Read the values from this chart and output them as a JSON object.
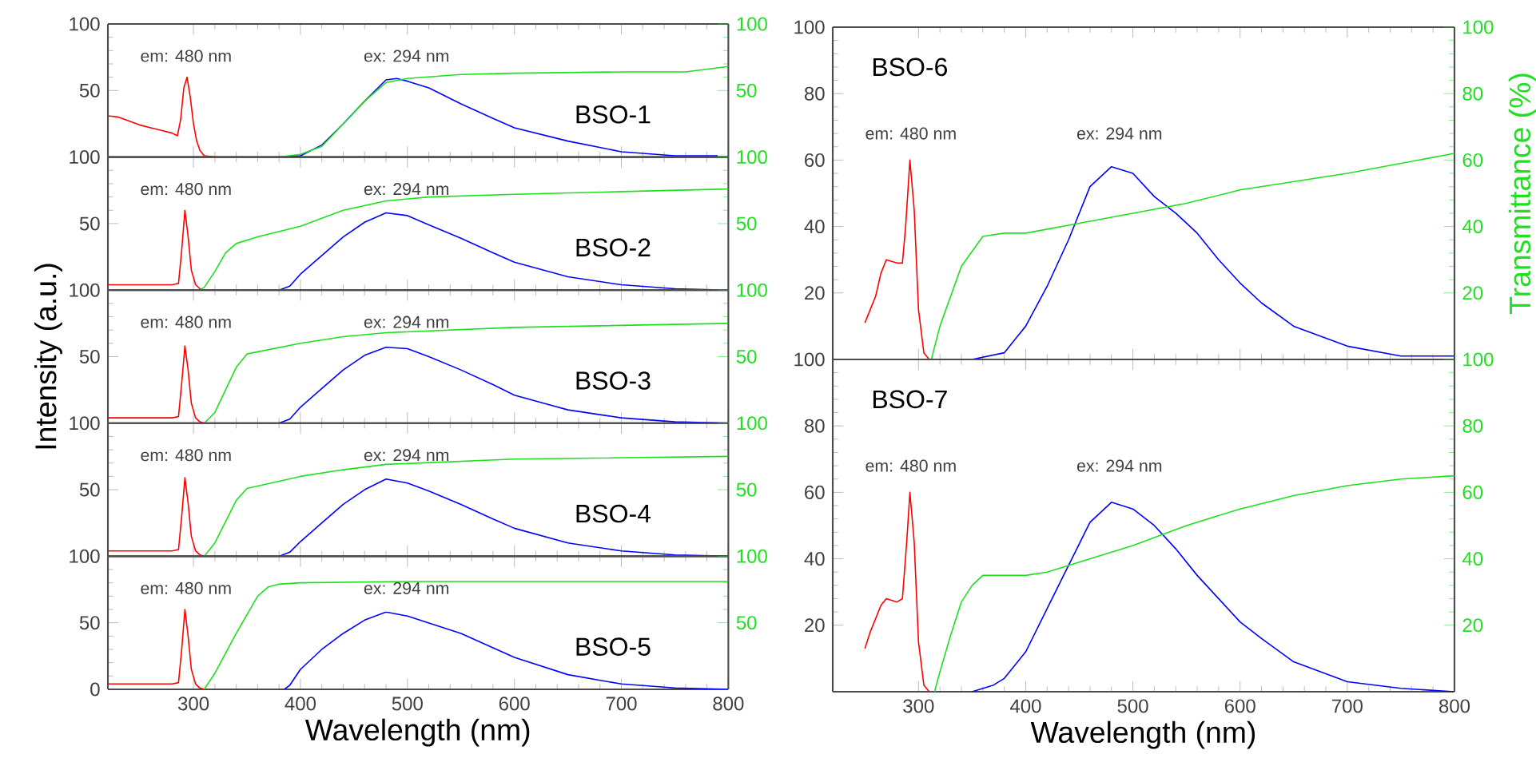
{
  "chart_data": [
    {
      "type": "line",
      "title": "BSO-1",
      "annotations": [
        "em: 480 nm",
        "ex: 294 nm"
      ],
      "xlim": [
        220,
        800
      ],
      "xticks": [
        300,
        400,
        500,
        600,
        700,
        800
      ],
      "ylim": [
        0,
        100
      ],
      "yticks": [
        50,
        100
      ],
      "y2lim": [
        0,
        100
      ],
      "y2ticks": [
        50,
        100
      ],
      "tick_labels": "y",
      "series": [
        {
          "color": "#ff0000",
          "x": [
            220,
            230,
            240,
            250,
            260,
            270,
            280,
            285,
            288,
            291,
            294,
            297,
            300,
            303,
            306,
            310,
            320
          ],
          "values": [
            31,
            30,
            27,
            24,
            22,
            20,
            18,
            16,
            28,
            52,
            60,
            45,
            25,
            12,
            5,
            1,
            0
          ]
        },
        {
          "color": "#0000ff",
          "x": [
            380,
            400,
            420,
            440,
            460,
            480,
            490,
            500,
            520,
            550,
            580,
            600,
            650,
            700,
            750,
            790
          ],
          "values": [
            0,
            1,
            9,
            25,
            42,
            58,
            59,
            57,
            52,
            40,
            29,
            22,
            12,
            4,
            1,
            1
          ]
        },
        {
          "color": "#1ee01e",
          "axis": "y2",
          "x": [
            380,
            400,
            420,
            440,
            460,
            480,
            500,
            550,
            600,
            700,
            760,
            800
          ],
          "values": [
            0,
            2,
            8,
            25,
            42,
            56,
            59,
            62,
            63,
            64,
            64,
            68
          ]
        }
      ]
    },
    {
      "type": "line",
      "title": "BSO-2",
      "annotations": [
        "em: 480 nm",
        "ex: 294 nm"
      ],
      "xlim": [
        220,
        800
      ],
      "xticks": [
        300,
        400,
        500,
        600,
        700,
        800
      ],
      "ylim": [
        0,
        100
      ],
      "yticks": [
        50,
        100
      ],
      "y2lim": [
        0,
        100
      ],
      "y2ticks": [
        50,
        100
      ],
      "tick_labels": "y",
      "series": [
        {
          "color": "#ff0000",
          "x": [
            220,
            240,
            260,
            280,
            286,
            289,
            292,
            295,
            298,
            302,
            306,
            310
          ],
          "values": [
            4,
            4,
            4,
            4,
            5,
            30,
            60,
            40,
            15,
            4,
            1,
            0
          ]
        },
        {
          "color": "#0000ff",
          "x": [
            380,
            390,
            400,
            420,
            440,
            460,
            480,
            500,
            520,
            550,
            580,
            600,
            650,
            700,
            750,
            800
          ],
          "values": [
            0,
            3,
            12,
            26,
            40,
            51,
            58,
            56,
            49,
            39,
            28,
            21,
            10,
            4,
            1,
            0
          ]
        },
        {
          "color": "#1ee01e",
          "axis": "y2",
          "x": [
            305,
            310,
            320,
            330,
            340,
            360,
            400,
            440,
            480,
            520,
            600,
            700,
            800
          ],
          "values": [
            0,
            2,
            14,
            28,
            35,
            40,
            48,
            60,
            67,
            70,
            72,
            74,
            76
          ]
        }
      ]
    },
    {
      "type": "line",
      "title": "BSO-3",
      "ylabel": "Intensity (a.u.)",
      "annotations": [
        "em: 480 nm",
        "ex: 294 nm"
      ],
      "xlim": [
        220,
        800
      ],
      "xticks": [
        300,
        400,
        500,
        600,
        700,
        800
      ],
      "ylim": [
        0,
        100
      ],
      "yticks": [
        50,
        100
      ],
      "y2lim": [
        0,
        100
      ],
      "y2ticks": [
        50,
        100
      ],
      "tick_labels": "y",
      "series": [
        {
          "color": "#ff0000",
          "x": [
            220,
            240,
            260,
            280,
            286,
            289,
            292,
            295,
            298,
            302,
            306,
            310
          ],
          "values": [
            4,
            4,
            4,
            4,
            5,
            30,
            58,
            40,
            15,
            4,
            1,
            0
          ]
        },
        {
          "color": "#0000ff",
          "x": [
            380,
            390,
            400,
            420,
            440,
            460,
            480,
            500,
            520,
            550,
            580,
            600,
            650,
            700,
            750,
            800
          ],
          "values": [
            0,
            3,
            12,
            26,
            40,
            51,
            57,
            56,
            50,
            40,
            29,
            21,
            10,
            4,
            1,
            0
          ]
        },
        {
          "color": "#1ee01e",
          "axis": "y2",
          "x": [
            310,
            320,
            330,
            340,
            350,
            400,
            440,
            480,
            600,
            800
          ],
          "values": [
            0,
            8,
            25,
            42,
            52,
            60,
            65,
            68,
            72,
            75
          ]
        }
      ]
    },
    {
      "type": "line",
      "title": "BSO-4",
      "annotations": [
        "em: 480 nm",
        "ex: 294 nm"
      ],
      "xlim": [
        220,
        800
      ],
      "xticks": [
        300,
        400,
        500,
        600,
        700,
        800
      ],
      "ylim": [
        0,
        100
      ],
      "yticks": [
        50,
        100
      ],
      "y2lim": [
        0,
        100
      ],
      "y2ticks": [
        50,
        100
      ],
      "tick_labels": "y",
      "series": [
        {
          "color": "#ff0000",
          "x": [
            220,
            240,
            260,
            280,
            286,
            289,
            292,
            295,
            298,
            302,
            306,
            310
          ],
          "values": [
            4,
            4,
            4,
            4,
            5,
            30,
            59,
            40,
            15,
            4,
            1,
            0
          ]
        },
        {
          "color": "#0000ff",
          "x": [
            380,
            390,
            400,
            420,
            440,
            460,
            480,
            500,
            520,
            550,
            580,
            600,
            650,
            700,
            750,
            800
          ],
          "values": [
            0,
            3,
            11,
            25,
            39,
            50,
            58,
            55,
            49,
            39,
            28,
            21,
            10,
            4,
            1,
            0
          ]
        },
        {
          "color": "#1ee01e",
          "axis": "y2",
          "x": [
            310,
            320,
            330,
            340,
            350,
            400,
            440,
            480,
            600,
            800
          ],
          "values": [
            0,
            10,
            26,
            42,
            51,
            60,
            65,
            69,
            73,
            75
          ]
        }
      ]
    },
    {
      "type": "line",
      "title": "BSO-5",
      "xlabel": "Wavelength (nm)",
      "annotations": [
        "em: 480 nm",
        "ex: 294 nm"
      ],
      "xlim": [
        220,
        800
      ],
      "xticks": [
        300,
        400,
        500,
        600,
        700,
        800
      ],
      "ylim": [
        0,
        100
      ],
      "yticks": [
        0,
        50,
        100
      ],
      "y2lim": [
        0,
        100
      ],
      "y2ticks": [
        50,
        100
      ],
      "series": [
        {
          "color": "#ff0000",
          "x": [
            220,
            240,
            260,
            280,
            286,
            289,
            292,
            295,
            298,
            302,
            306,
            310
          ],
          "values": [
            4,
            4,
            4,
            4,
            5,
            30,
            60,
            40,
            15,
            4,
            1,
            0
          ]
        },
        {
          "color": "#0000ff",
          "x": [
            385,
            390,
            400,
            420,
            440,
            460,
            480,
            500,
            550,
            600,
            650,
            700,
            750,
            800
          ],
          "values": [
            0,
            3,
            15,
            30,
            42,
            52,
            58,
            55,
            42,
            24,
            11,
            4,
            1,
            0
          ]
        },
        {
          "color": "#1ee01e",
          "axis": "y2",
          "x": [
            310,
            320,
            340,
            350,
            360,
            370,
            380,
            400,
            500,
            800
          ],
          "values": [
            0,
            12,
            42,
            56,
            70,
            77,
            79,
            80,
            81,
            81
          ]
        }
      ]
    },
    {
      "type": "line",
      "title": "BSO-6",
      "y2label": "Transmittance (%)",
      "annotations": [
        "em: 480 nm",
        "ex: 294 nm"
      ],
      "xlim": [
        220,
        800
      ],
      "xticks": [
        300,
        400,
        500,
        600,
        700,
        800
      ],
      "ylim": [
        0,
        100
      ],
      "yticks": [
        20,
        40,
        60,
        80,
        100
      ],
      "y2lim": [
        0,
        100
      ],
      "y2ticks": [
        20,
        40,
        60,
        80,
        100
      ],
      "tick_labels": "y",
      "series": [
        {
          "color": "#ff0000",
          "x": [
            250,
            255,
            260,
            265,
            270,
            280,
            285,
            288,
            292,
            296,
            300,
            305,
            310,
            350
          ],
          "values": [
            11,
            15,
            19,
            26,
            30,
            29,
            29,
            40,
            60,
            45,
            15,
            2,
            0,
            0
          ]
        },
        {
          "color": "#0000ff",
          "x": [
            350,
            380,
            400,
            420,
            440,
            460,
            480,
            500,
            520,
            540,
            560,
            580,
            600,
            620,
            650,
            700,
            750,
            800
          ],
          "values": [
            0,
            2,
            10,
            22,
            36,
            52,
            58,
            56,
            49,
            44,
            38,
            30,
            23,
            17,
            10,
            4,
            1,
            1
          ]
        },
        {
          "color": "#1ee01e",
          "axis": "y2",
          "x": [
            312,
            320,
            340,
            360,
            380,
            400,
            450,
            500,
            550,
            600,
            700,
            800
          ],
          "values": [
            0,
            10,
            28,
            37,
            38,
            38,
            41,
            44,
            47,
            51,
            56,
            62
          ]
        }
      ]
    },
    {
      "type": "line",
      "title": "BSO-7",
      "xlabel": "Wavelength (nm)",
      "annotations": [
        "em: 480 nm",
        "ex: 294 nm"
      ],
      "xlim": [
        220,
        800
      ],
      "xticks": [
        300,
        400,
        500,
        600,
        700,
        800
      ],
      "ylim": [
        0,
        100
      ],
      "yticks": [
        20,
        40,
        60,
        80,
        100
      ],
      "y2lim": [
        0,
        100
      ],
      "y2ticks": [
        20,
        40,
        60,
        80,
        100
      ],
      "series": [
        {
          "color": "#ff0000",
          "x": [
            250,
            255,
            260,
            265,
            270,
            280,
            285,
            289,
            292,
            296,
            300,
            305,
            310,
            350
          ],
          "values": [
            13,
            18,
            22,
            26,
            28,
            27,
            28,
            45,
            60,
            45,
            15,
            2,
            0,
            0
          ]
        },
        {
          "color": "#0000ff",
          "x": [
            350,
            370,
            380,
            400,
            420,
            440,
            460,
            480,
            500,
            520,
            540,
            560,
            580,
            600,
            620,
            650,
            700,
            750,
            800
          ],
          "values": [
            0,
            2,
            4,
            12,
            25,
            38,
            51,
            57,
            55,
            50,
            43,
            35,
            28,
            21,
            16,
            9,
            3,
            1,
            0
          ]
        },
        {
          "color": "#1ee01e",
          "axis": "y2",
          "x": [
            315,
            320,
            330,
            340,
            350,
            360,
            380,
            400,
            420,
            450,
            500,
            550,
            600,
            650,
            700,
            750,
            800
          ],
          "values": [
            0,
            6,
            17,
            27,
            32,
            35,
            35,
            35,
            36,
            39,
            44,
            50,
            55,
            59,
            62,
            64,
            65
          ]
        }
      ]
    }
  ]
}
